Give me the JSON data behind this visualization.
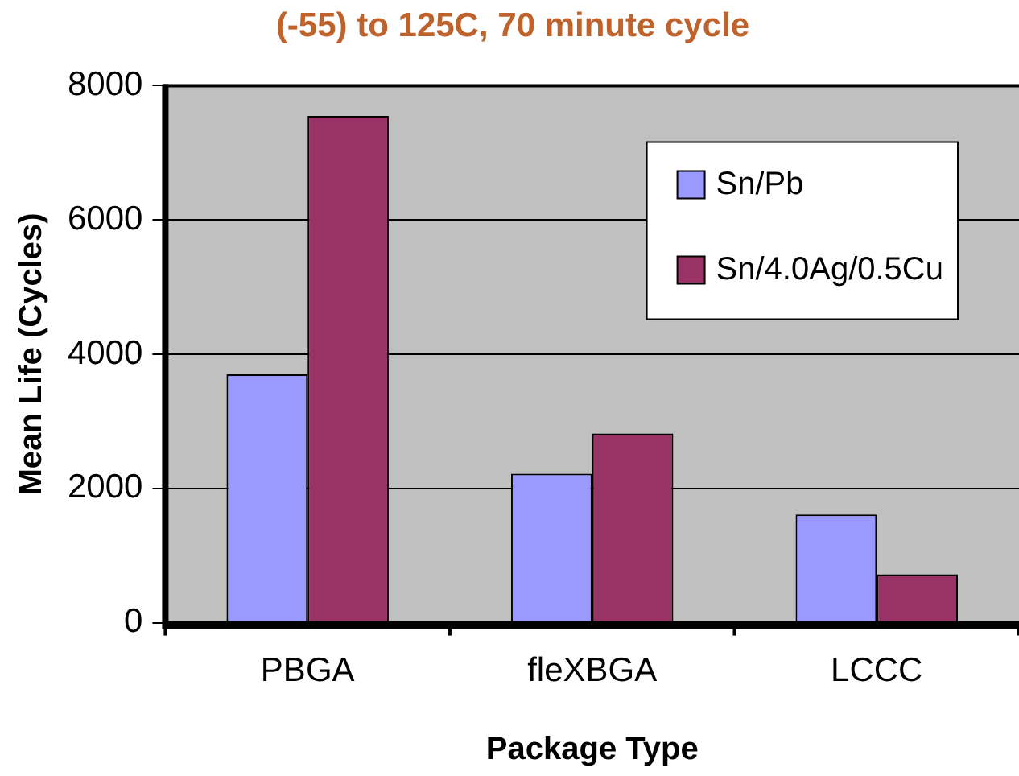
{
  "chart_data": {
    "type": "bar",
    "title": "(-55) to 125C, 70 minute cycle",
    "xlabel": "Package Type",
    "ylabel": "Mean Life (Cycles)",
    "categories": [
      "PBGA",
      "fleXBGA",
      "LCCC"
    ],
    "series": [
      {
        "name": "Sn/Pb",
        "color": "#9999ff",
        "values": [
          3700,
          2220,
          1610
        ]
      },
      {
        "name": "Sn/4.0Ag/0.5Cu",
        "color": "#993366",
        "values": [
          7550,
          2820,
          720
        ]
      }
    ],
    "ylim": [
      0,
      8000
    ],
    "yticks": [
      0,
      2000,
      4000,
      6000,
      8000
    ],
    "grid": "y",
    "legend": "top right"
  }
}
